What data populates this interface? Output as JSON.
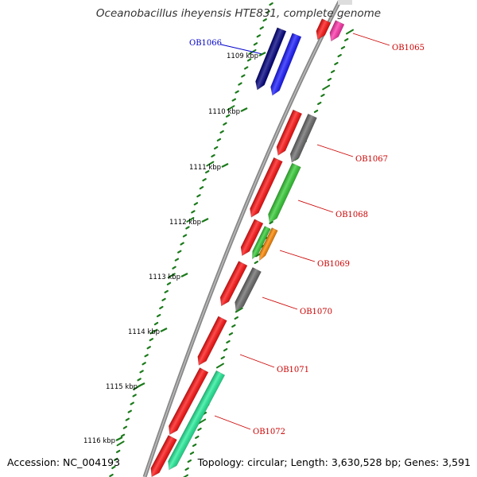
{
  "title": "Oceanobacillus iheyensis HTE831, complete genome",
  "footer": {
    "accession": "Accession: NC_004193",
    "topology": "Topology: circular; Length: 3,630,528 bp; Genes: 3,591"
  },
  "colors": {
    "backbone": "#888888",
    "tick": "#1a7a1a",
    "label_red": "#cc0000",
    "label_blue": "#0000cc"
  },
  "scale_labels": [
    {
      "kbp": 1109,
      "text": "1109 kbp"
    },
    {
      "kbp": 1110,
      "text": "1110 kbp"
    },
    {
      "kbp": 1111,
      "text": "1111 kbp"
    },
    {
      "kbp": 1112,
      "text": "1112 kbp"
    },
    {
      "kbp": 1113,
      "text": "1113 kbp"
    },
    {
      "kbp": 1114,
      "text": "1114 kbp"
    },
    {
      "kbp": 1115,
      "text": "1115 kbp"
    },
    {
      "kbp": 1116,
      "text": "1116 kbp"
    }
  ],
  "gene_labels": [
    {
      "text": "OB1065",
      "color": "#cc0000"
    },
    {
      "text": "OB1066",
      "color": "#0000cc"
    },
    {
      "text": "OB1067",
      "color": "#cc0000"
    },
    {
      "text": "OB1068",
      "color": "#cc0000"
    },
    {
      "text": "OB1069",
      "color": "#cc0000"
    },
    {
      "text": "OB1070",
      "color": "#cc0000"
    },
    {
      "text": "OB1071",
      "color": "#cc0000"
    },
    {
      "text": "OB1072",
      "color": "#cc0000"
    }
  ],
  "features": [
    {
      "name": "OB1065-cds",
      "color": "#ff1010"
    },
    {
      "name": "OB1065-gene",
      "color": "#ff33aa"
    },
    {
      "name": "OB1066-cds",
      "color": "#000080"
    },
    {
      "name": "OB1066-gene",
      "color": "#1a1aff"
    },
    {
      "name": "OB1067-cds",
      "color": "#ff1010"
    },
    {
      "name": "OB1067-gene",
      "color": "#6a6a6a"
    },
    {
      "name": "OB1068-cds",
      "color": "#ff1010"
    },
    {
      "name": "OB1068-gene",
      "color": "#33cc33"
    },
    {
      "name": "OB1069-cds",
      "color": "#ff1010"
    },
    {
      "name": "OB1069-gene-a",
      "color": "#33cc33"
    },
    {
      "name": "OB1069-gene-b",
      "color": "#ff8800"
    },
    {
      "name": "OB1070-cds",
      "color": "#ff1010"
    },
    {
      "name": "OB1070-gene",
      "color": "#6a6a6a"
    },
    {
      "name": "OB1071-cds",
      "color": "#ff1010"
    },
    {
      "name": "OB1072-cds",
      "color": "#ff1010"
    },
    {
      "name": "OB1072-gene",
      "color": "#22ee99"
    },
    {
      "name": "OB1073-cds",
      "color": "#ff1010"
    }
  ]
}
